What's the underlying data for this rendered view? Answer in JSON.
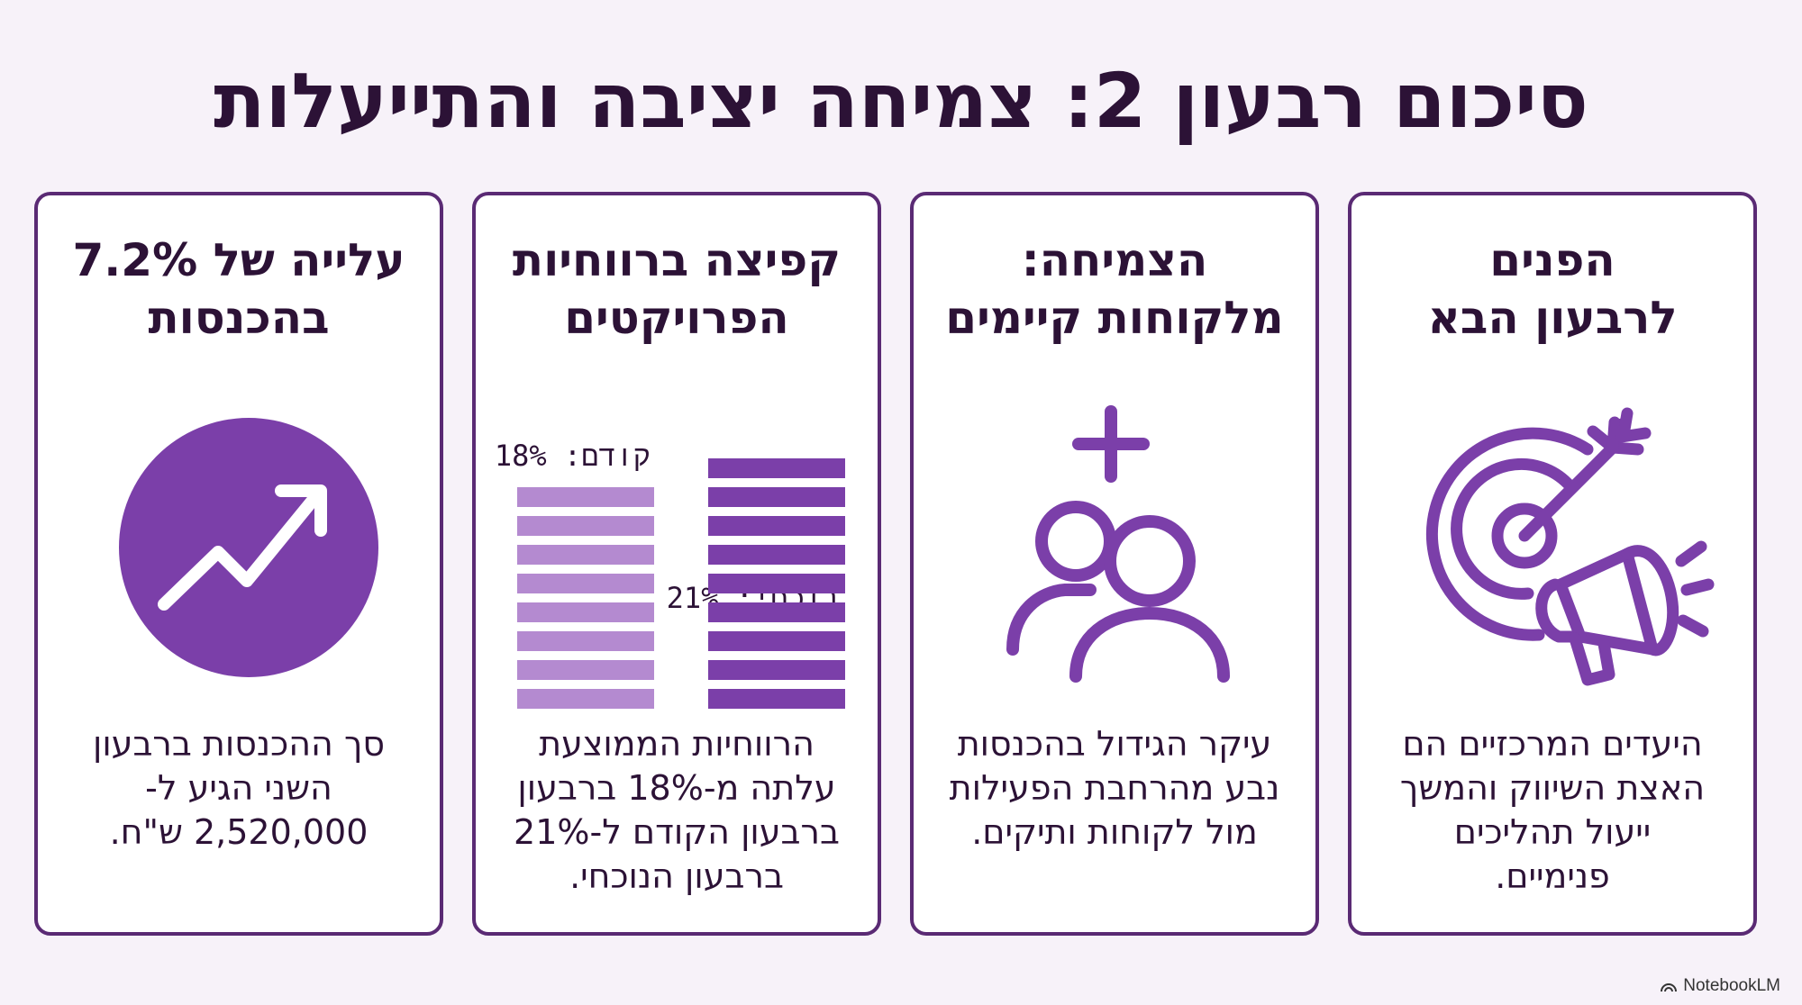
{
  "title": "סיכום רבעון 2: צמיחה יציבה והתייעלות",
  "cards": [
    {
      "title_line1": "הפנים",
      "title_line2": "לרבעון הבא",
      "icon": "target-megaphone-icon",
      "body_lines": [
        "היעדים המרכזיים הם",
        "האצת השיווק והמשך",
        "ייעול תהליכים",
        "פנימיים."
      ]
    },
    {
      "title_line1": "הצמיחה:",
      "title_line2": "מלקוחות קיימים",
      "icon": "add-users-icon",
      "body_lines": [
        "עיקר הגידול בהכנסות",
        "נבע מהרחבת הפעילות",
        "מול לקוחות ותיקים."
      ]
    },
    {
      "title_line1": "קפיצה ברווחיות",
      "title_line2": "הפרויקטים",
      "previous_label": "קודם: 18%",
      "current_label": "נוכחי: 21%",
      "previous_value": 18,
      "current_value": 21,
      "body_lines": [
        "הרווחיות הממוצעת",
        "עלתה מ-18% ברבעון",
        "ברבעון הקודם ל-21%",
        "ברבעון הנוכחי."
      ]
    },
    {
      "title_line1": "עלייה של 7.2%",
      "title_line2": "בהכנסות",
      "icon": "trending-up-icon",
      "body_lines": [
        "סך ההכנסות ברבעון",
        "השני הגיע ל-",
        "2,520,000 ש\"ח."
      ]
    }
  ],
  "colors": {
    "accent": "#7b3fa9",
    "accent_light": "#b48ad0",
    "border": "#5a2a74",
    "background": "#f7f2f9"
  },
  "footer": {
    "brand": "NotebookLM"
  }
}
